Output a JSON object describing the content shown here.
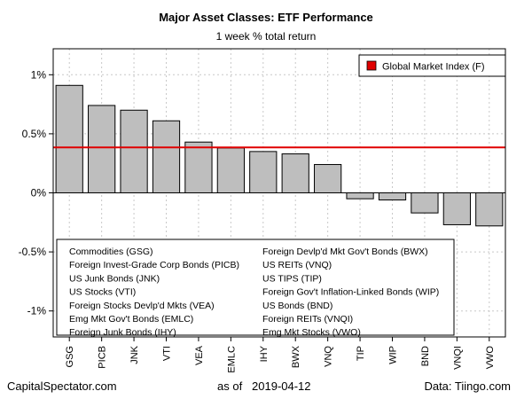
{
  "chart_data": {
    "type": "bar",
    "title": "Major Asset Classes: ETF Performance",
    "subtitle": "1 week % total return",
    "categories": [
      "GSG",
      "PICB",
      "JNK",
      "VTI",
      "VEA",
      "EMLC",
      "IHY",
      "BWX",
      "VNQ",
      "TIP",
      "WIP",
      "BND",
      "VNQI",
      "VWO"
    ],
    "values": [
      0.91,
      0.74,
      0.7,
      0.61,
      0.43,
      0.38,
      0.35,
      0.33,
      0.24,
      -0.05,
      -0.06,
      -0.17,
      -0.27,
      -0.28
    ],
    "bar_color": "#bebebe",
    "ylim": [
      -1.22,
      1.22
    ],
    "yticks": [
      {
        "value": 1,
        "label": "1%"
      },
      {
        "value": 0.5,
        "label": "0.5%"
      },
      {
        "value": 0,
        "label": "0%"
      },
      {
        "value": -0.5,
        "label": "-0.5%"
      },
      {
        "value": -1,
        "label": "-1%"
      }
    ],
    "grid": true,
    "reference_line": {
      "label": "Global Market Index (F)",
      "value": 0.385,
      "color": "#e00000"
    },
    "legend_position": "top-right",
    "key_position": "bottom-left",
    "key_left": [
      "Commodities (GSG)",
      "Foreign Invest-Grade Corp Bonds (PICB)",
      "US Junk Bonds (JNK)",
      "US Stocks (VTI)",
      "Foreign Stocks Devlp'd Mkts (VEA)",
      "Emg Mkt Gov't Bonds (EMLC)",
      "Foreign Junk Bonds (IHY)"
    ],
    "key_right": [
      "Foreign Devlp'd Mkt Gov't Bonds (BWX)",
      "US REITs (VNQ)",
      "US TIPS (TIP)",
      "Foreign Gov't Inflation-Linked Bonds (WIP)",
      "US Bonds (BND)",
      "Foreign REITs (VNQI)",
      "Emg Mkt Stocks (VWO)"
    ]
  },
  "footer": {
    "left": "CapitalSpectator.com",
    "center": "as of   2019-04-12",
    "right": "Data: Tiingo.com"
  }
}
